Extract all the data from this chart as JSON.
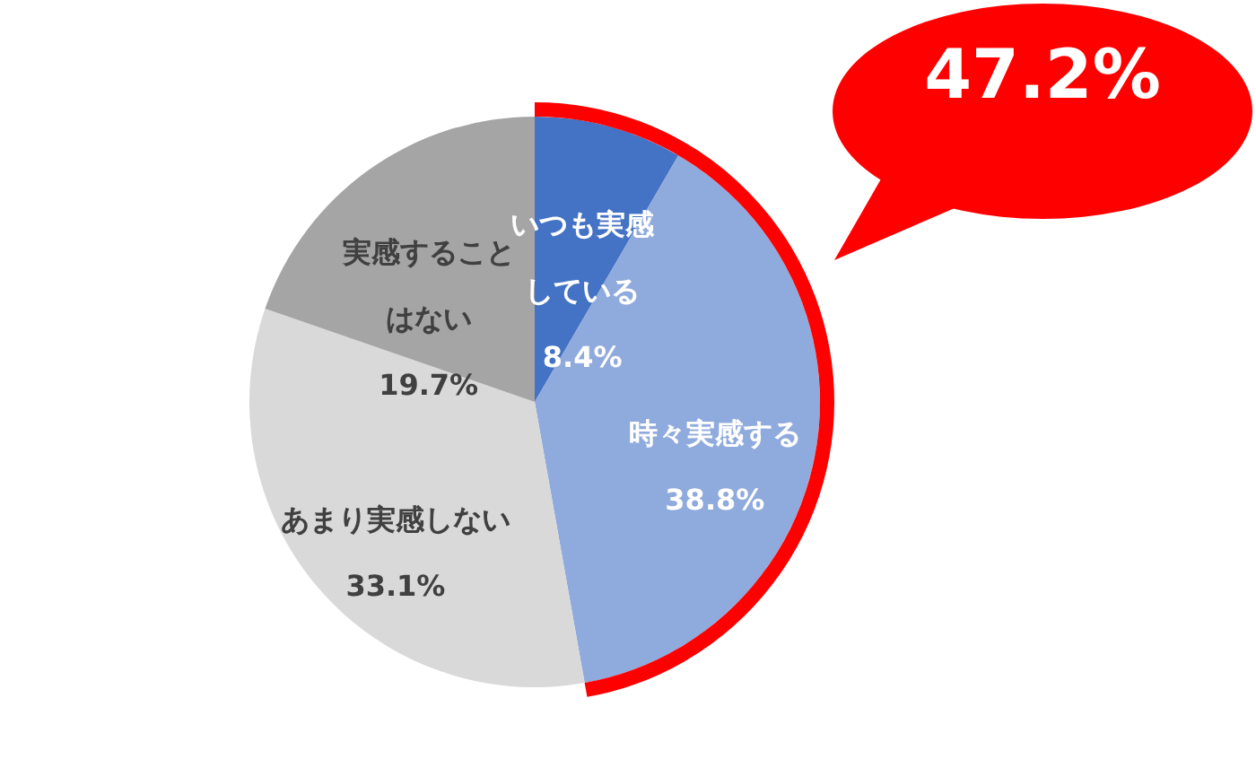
{
  "chart_data": {
    "type": "pie",
    "categories": [
      "いつも実感している",
      "時々実感する",
      "あまり実感しない",
      "実感することはない"
    ],
    "values": [
      8.4,
      38.8,
      33.1,
      19.7
    ],
    "colors": [
      "#4472c4",
      "#8faadc",
      "#d9d9d9",
      "#a5a5a5"
    ],
    "value_labels": [
      "8.4%",
      "38.8%",
      "33.1%",
      "19.7%"
    ],
    "annotations": [
      "47.2%"
    ]
  }
}
